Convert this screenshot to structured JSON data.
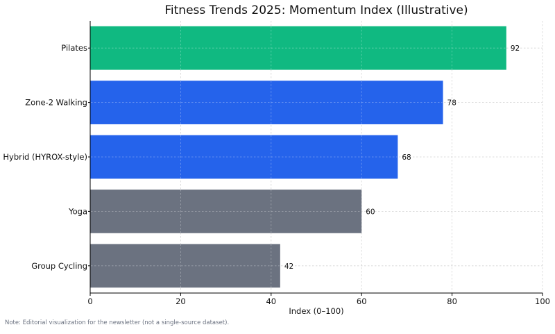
{
  "chart_data": {
    "type": "bar",
    "orientation": "horizontal",
    "title": "Fitness Trends 2025: Momentum Index (Illustrative)",
    "xlabel": "Index (0–100)",
    "ylabel": "",
    "xlim": [
      0,
      100
    ],
    "xticks": [
      0,
      20,
      40,
      60,
      80,
      100
    ],
    "grid": true,
    "categories": [
      "Pilates",
      "Zone-2 Walking",
      "Hybrid (HYROX-style)",
      "Yoga",
      "Group Cycling"
    ],
    "values": [
      92,
      78,
      68,
      60,
      42
    ],
    "data_labels": [
      "92",
      "78",
      "68",
      "60",
      "42"
    ],
    "colors": [
      "#10b981",
      "#2563eb",
      "#2563eb",
      "#6b7280",
      "#6b7280"
    ]
  },
  "footnote": "Note: Editorial visualization for the newsletter (not a single-source dataset)."
}
